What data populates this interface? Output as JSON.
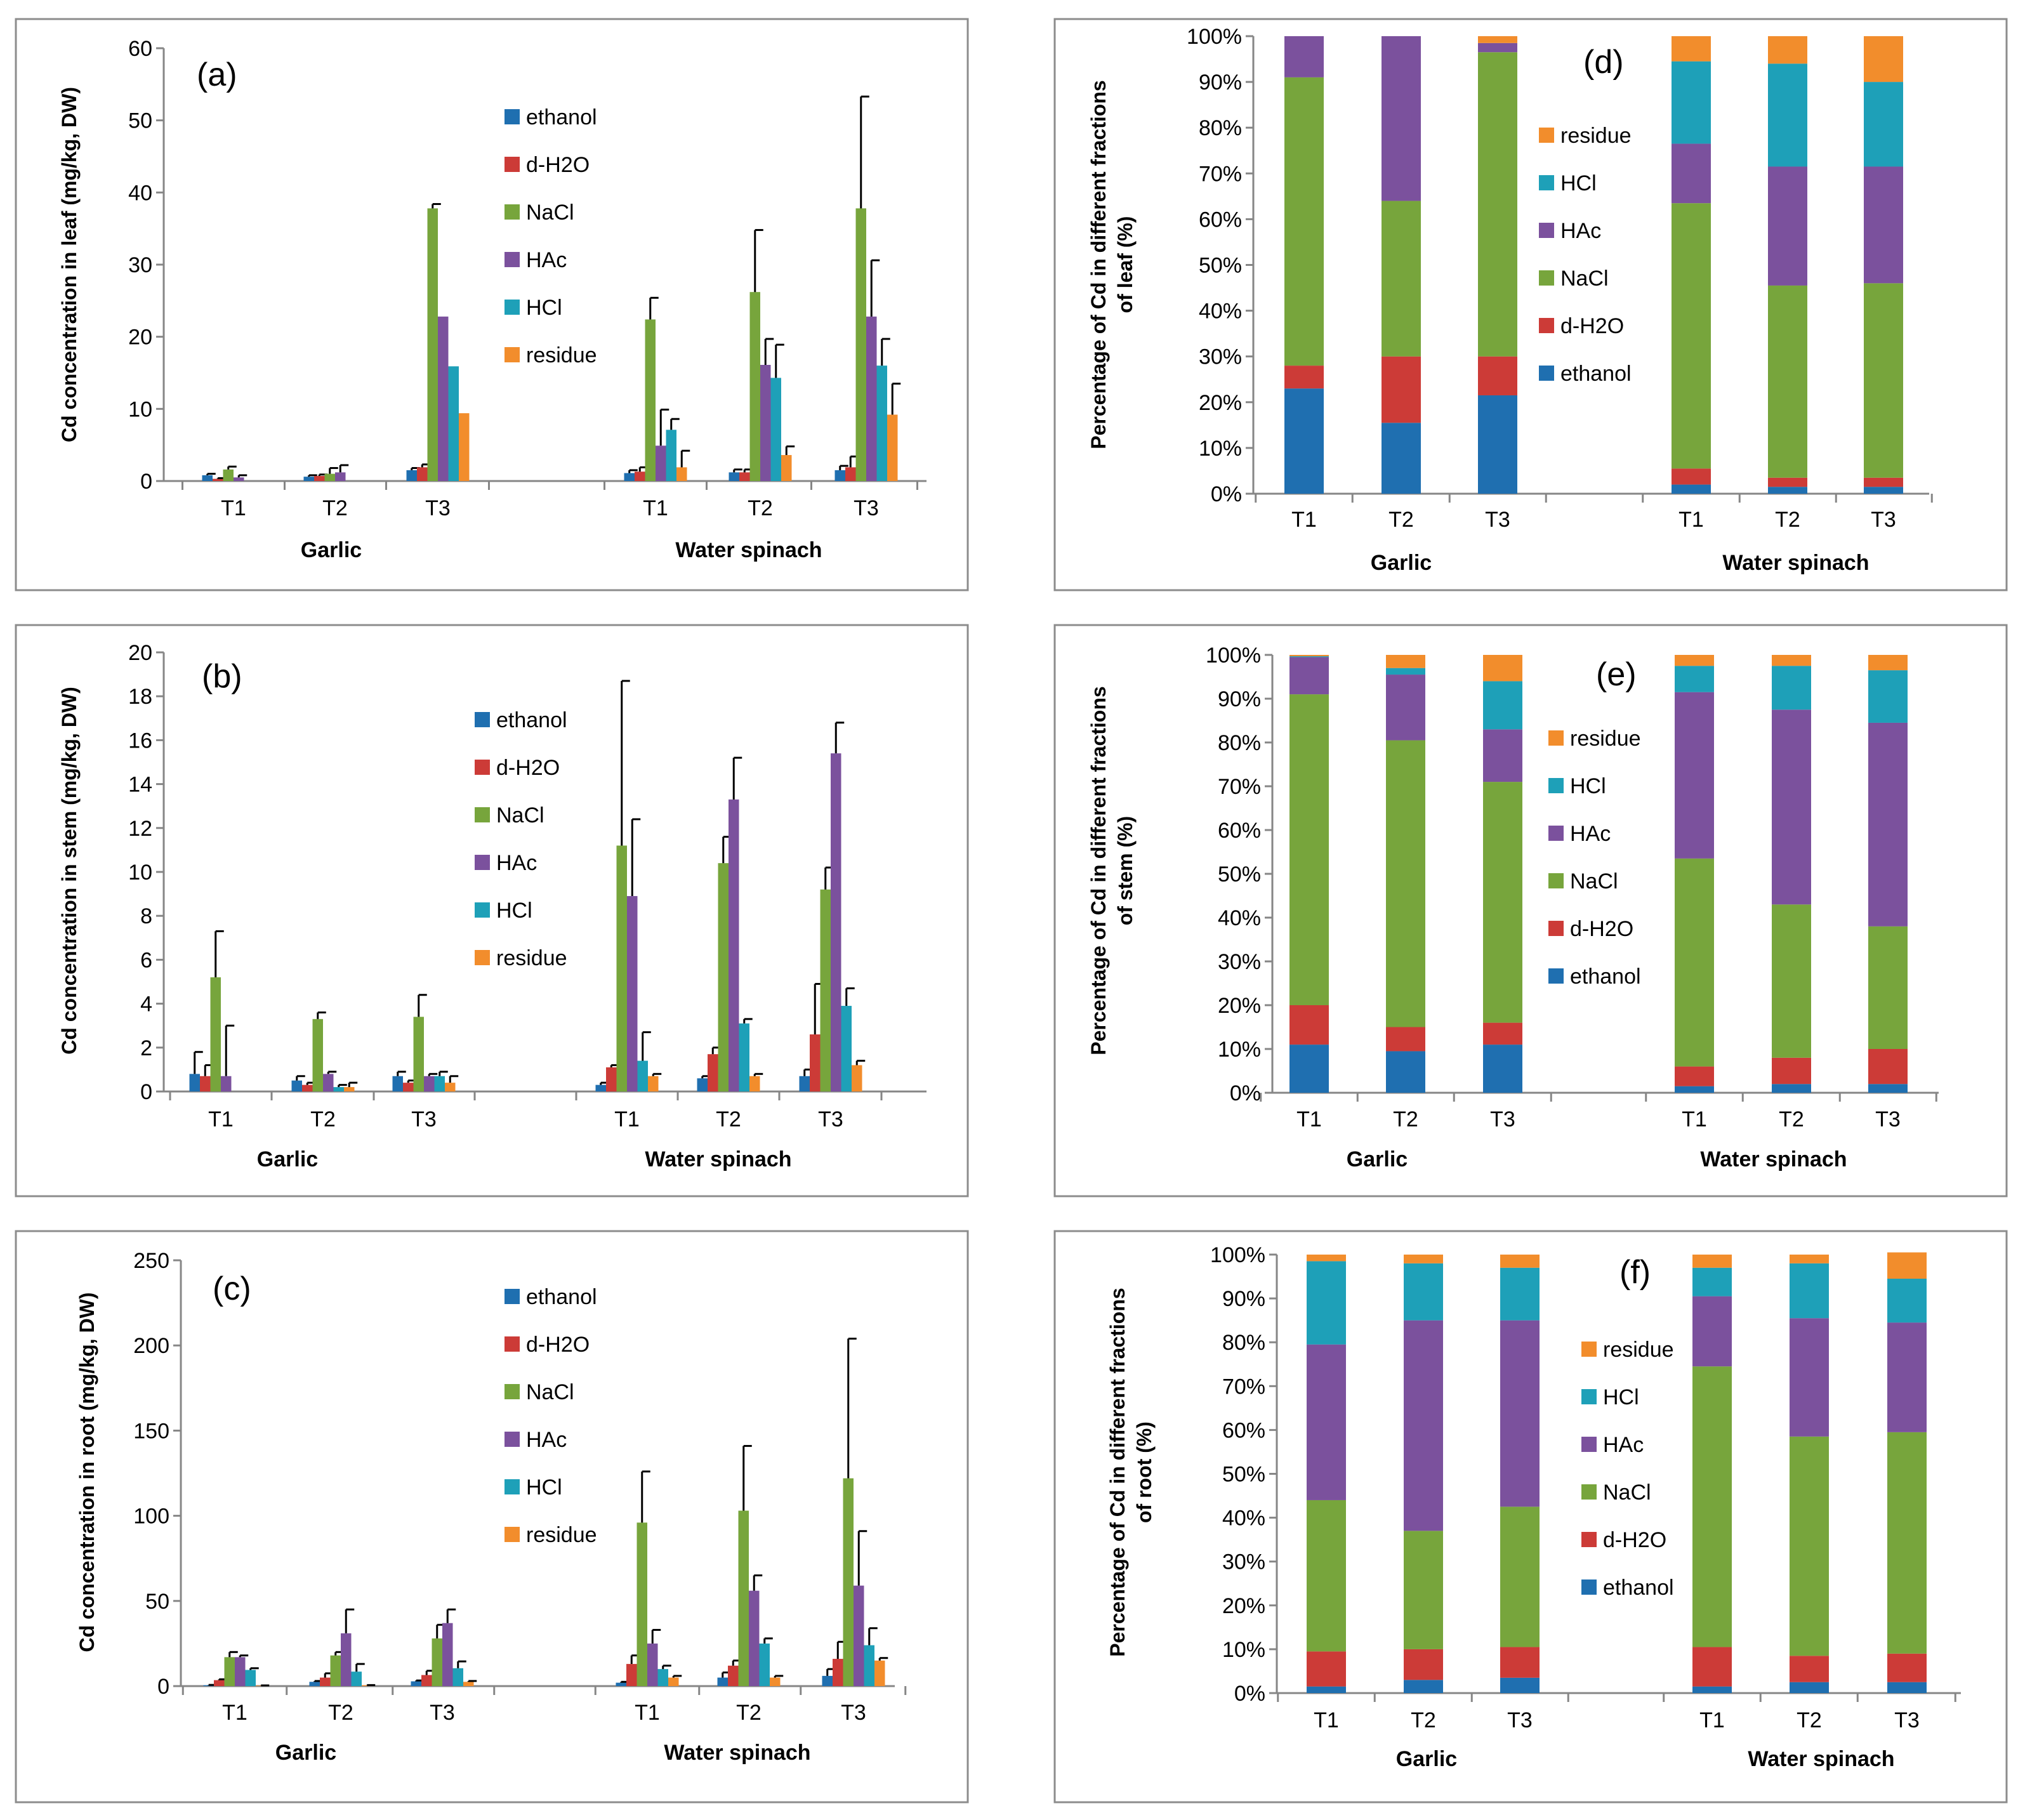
{
  "colors": {
    "ethanol": "#1f6fb0",
    "d-H2O": "#cc3b37",
    "NaCl": "#77a53c",
    "HAc": "#7b519d",
    "HCl": "#1ea0b8",
    "residue": "#f28d2c"
  },
  "chart_data": [
    {
      "id": "a",
      "type": "bar",
      "letter": "(a)",
      "ylabel": "Cd concentration in leaf (mg/kg, DW)",
      "ylim": [
        0,
        60
      ],
      "yticks": [
        0,
        10,
        20,
        30,
        40,
        50,
        60
      ],
      "groups": [
        "Garlic",
        "Water spinach"
      ],
      "categories": [
        "T1",
        "T2",
        "T3"
      ],
      "legend": [
        "ethanol",
        "d-H2O",
        "NaCl",
        "HAc",
        "HCl",
        "residue"
      ],
      "series": [
        {
          "name": "ethanol",
          "values": [
            [
              0.8,
              0.6,
              1.5
            ],
            [
              1.1,
              1.2,
              1.5
            ]
          ],
          "errors": [
            [
              0.2,
              0.2,
              0.3
            ],
            [
              0.4,
              0.4,
              0.6
            ]
          ]
        },
        {
          "name": "d-H2O",
          "values": [
            [
              0.3,
              0.7,
              1.9
            ],
            [
              1.3,
              1.2,
              1.9
            ]
          ],
          "errors": [
            [
              0.1,
              0.2,
              0.4
            ],
            [
              0.6,
              0.4,
              1.5
            ]
          ]
        },
        {
          "name": "NaCl",
          "values": [
            [
              1.6,
              1.0,
              37.8
            ],
            [
              22.4,
              26.2,
              37.8
            ]
          ],
          "errors": [
            [
              0.4,
              0.8,
              0.6
            ],
            [
              3.0,
              8.6,
              15.5
            ]
          ]
        },
        {
          "name": "HAc",
          "values": [
            [
              0.5,
              1.2,
              22.8
            ],
            [
              4.9,
              16.1,
              22.8
            ]
          ],
          "errors": [
            [
              0.3,
              1.0,
              0.0
            ],
            [
              5.0,
              3.6,
              7.8
            ]
          ]
        },
        {
          "name": "HCl",
          "values": [
            [
              0.0,
              0.0,
              15.9
            ],
            [
              7.1,
              14.3,
              16.0
            ]
          ],
          "errors": [
            [
              0.0,
              0.0,
              0.0
            ],
            [
              1.5,
              4.6,
              3.7
            ]
          ]
        },
        {
          "name": "residue",
          "values": [
            [
              0.0,
              0.0,
              9.4
            ],
            [
              1.9,
              3.6,
              9.2
            ]
          ],
          "errors": [
            [
              0.0,
              0.0,
              0.0
            ],
            [
              2.3,
              1.2,
              4.3
            ]
          ]
        }
      ]
    },
    {
      "id": "b",
      "type": "bar",
      "letter": "(b)",
      "ylabel": "Cd concentration in stem (mg/kg, DW)",
      "ylim": [
        0,
        20
      ],
      "yticks": [
        0,
        2,
        4,
        6,
        8,
        10,
        12,
        14,
        16,
        18,
        20
      ],
      "groups": [
        "Garlic",
        "Water spinach"
      ],
      "categories": [
        "T1",
        "T2",
        "T3"
      ],
      "legend": [
        "ethanol",
        "d-H2O",
        "NaCl",
        "HAc",
        "HCl",
        "residue"
      ],
      "series": [
        {
          "name": "ethanol",
          "values": [
            [
              0.8,
              0.5,
              0.7
            ],
            [
              0.3,
              0.6,
              0.7
            ]
          ],
          "errors": [
            [
              1.0,
              0.2,
              0.2
            ],
            [
              0.1,
              0.1,
              0.3
            ]
          ]
        },
        {
          "name": "d-H2O",
          "values": [
            [
              0.7,
              0.3,
              0.4
            ],
            [
              1.1,
              1.7,
              2.6
            ]
          ],
          "errors": [
            [
              0.5,
              0.1,
              0.1
            ],
            [
              0.1,
              0.3,
              2.3
            ]
          ]
        },
        {
          "name": "NaCl",
          "values": [
            [
              5.2,
              3.3,
              3.4
            ],
            [
              11.2,
              10.4,
              9.2
            ]
          ],
          "errors": [
            [
              2.1,
              0.3,
              1.0
            ],
            [
              7.5,
              1.2,
              1.0
            ]
          ]
        },
        {
          "name": "HAc",
          "values": [
            [
              0.7,
              0.8,
              0.7
            ],
            [
              8.9,
              13.3,
              15.4
            ]
          ],
          "errors": [
            [
              2.3,
              0.1,
              0.1
            ],
            [
              3.5,
              1.9,
              1.4
            ]
          ]
        },
        {
          "name": "HCl",
          "values": [
            [
              0.0,
              0.2,
              0.7
            ],
            [
              1.4,
              3.1,
              3.9
            ]
          ],
          "errors": [
            [
              0.0,
              0.1,
              0.2
            ],
            [
              1.3,
              0.2,
              0.8
            ]
          ]
        },
        {
          "name": "residue",
          "values": [
            [
              0.0,
              0.2,
              0.4
            ],
            [
              0.7,
              0.7,
              1.2
            ]
          ],
          "errors": [
            [
              0.0,
              0.2,
              0.3
            ],
            [
              0.1,
              0.1,
              0.2
            ]
          ]
        }
      ]
    },
    {
      "id": "c",
      "type": "bar",
      "letter": "(c)",
      "ylabel": "Cd concentration in root (mg/kg, DW)",
      "ylim": [
        0,
        250
      ],
      "yticks": [
        0,
        50,
        100,
        150,
        200,
        250
      ],
      "groups": [
        "Garlic",
        "Water spinach"
      ],
      "categories": [
        "T1",
        "T2",
        "T3"
      ],
      "legend": [
        "ethanol",
        "d-H2O",
        "NaCl",
        "HAc",
        "HCl",
        "residue"
      ],
      "series": [
        {
          "name": "ethanol",
          "values": [
            [
              0.5,
              2.5,
              2.8
            ],
            [
              2.0,
              5.0,
              6.0
            ]
          ],
          "errors": [
            [
              0.2,
              0.5,
              0.5
            ],
            [
              0.5,
              3.0,
              4.0
            ]
          ]
        },
        {
          "name": "d-H2O",
          "values": [
            [
              3.5,
              5.0,
              6.5
            ],
            [
              13.0,
              12.0,
              16.0
            ]
          ],
          "errors": [
            [
              0.5,
              2.5,
              2.5
            ],
            [
              5.0,
              3.0,
              10.0
            ]
          ]
        },
        {
          "name": "NaCl",
          "values": [
            [
              17.0,
              18.0,
              28.0
            ],
            [
              96.0,
              103.0,
              122.0
            ]
          ],
          "errors": [
            [
              3.0,
              2.0,
              8.0
            ],
            [
              30.0,
              38.0,
              82.0
            ]
          ]
        },
        {
          "name": "HAc",
          "values": [
            [
              17.0,
              31.0,
              37.0
            ],
            [
              25.0,
              56.0,
              59.0
            ]
          ],
          "errors": [
            [
              1.0,
              14.0,
              8.0
            ],
            [
              8.0,
              9.0,
              32.0
            ]
          ]
        },
        {
          "name": "HCl",
          "values": [
            [
              9.5,
              8.5,
              10.5
            ],
            [
              10.0,
              25.0,
              24.0
            ]
          ],
          "errors": [
            [
              1.0,
              4.5,
              4.0
            ],
            [
              2.0,
              3.0,
              10.0
            ]
          ]
        },
        {
          "name": "residue",
          "values": [
            [
              0.3,
              0.5,
              2.5
            ],
            [
              5.0,
              5.0,
              15.0
            ]
          ],
          "errors": [
            [
              0.1,
              0.1,
              0.5
            ],
            [
              1.0,
              1.0,
              1.5
            ]
          ]
        }
      ]
    },
    {
      "id": "d",
      "type": "bar",
      "stacked": true,
      "letter": "(d)",
      "ylabel": [
        "Percentage of Cd in different fractions",
        "of leaf (%)"
      ],
      "ylim": [
        0,
        100
      ],
      "yticks": [
        "0%",
        "10%",
        "20%",
        "30%",
        "40%",
        "50%",
        "60%",
        "70%",
        "80%",
        "90%",
        "100%"
      ],
      "groups": [
        "Garlic",
        "Water spinach"
      ],
      "categories": [
        "T1",
        "T2",
        "T3"
      ],
      "legend": [
        "residue",
        "HCl",
        "HAc",
        "NaCl",
        "d-H2O",
        "ethanol"
      ],
      "series": [
        {
          "name": "ethanol",
          "values": [
            [
              23,
              15.5,
              21.5
            ],
            [
              2,
              1.5,
              1.5
            ]
          ]
        },
        {
          "name": "d-H2O",
          "values": [
            [
              5,
              14.5,
              8.5
            ],
            [
              3.5,
              2,
              2
            ]
          ]
        },
        {
          "name": "NaCl",
          "values": [
            [
              63,
              34,
              66.5
            ],
            [
              58,
              42,
              42.5
            ]
          ]
        },
        {
          "name": "HAc",
          "values": [
            [
              9,
              36,
              2
            ],
            [
              13,
              26,
              25.5
            ]
          ]
        },
        {
          "name": "HCl",
          "values": [
            [
              0,
              0,
              0
            ],
            [
              18,
              22.5,
              18.5
            ]
          ]
        },
        {
          "name": "residue",
          "values": [
            [
              0,
              0,
              1.5
            ],
            [
              5.5,
              6,
              10
            ]
          ]
        }
      ]
    },
    {
      "id": "e",
      "type": "bar",
      "stacked": true,
      "letter": "(e)",
      "ylabel": [
        "Percentage of Cd in different fractions",
        "of stem (%)"
      ],
      "ylim": [
        0,
        100
      ],
      "yticks": [
        "0%",
        "10%",
        "20%",
        "30%",
        "40%",
        "50%",
        "60%",
        "70%",
        "80%",
        "90%",
        "100%"
      ],
      "groups": [
        "Garlic",
        "Water spinach"
      ],
      "categories": [
        "T1",
        "T2",
        "T3"
      ],
      "legend": [
        "residue",
        "HCl",
        "HAc",
        "NaCl",
        "d-H2O",
        "ethanol"
      ],
      "series": [
        {
          "name": "ethanol",
          "values": [
            [
              11,
              9.5,
              11
            ],
            [
              1.5,
              2,
              2
            ]
          ]
        },
        {
          "name": "d-H2O",
          "values": [
            [
              9,
              5.5,
              5
            ],
            [
              4.5,
              6,
              8
            ]
          ]
        },
        {
          "name": "NaCl",
          "values": [
            [
              71,
              65.5,
              55
            ],
            [
              47.5,
              35,
              28
            ]
          ]
        },
        {
          "name": "HAc",
          "values": [
            [
              8.5,
              15,
              12
            ],
            [
              38,
              44.5,
              46.5
            ]
          ]
        },
        {
          "name": "HCl",
          "values": [
            [
              0.2,
              1.5,
              11
            ],
            [
              6,
              10,
              12
            ]
          ]
        },
        {
          "name": "residue",
          "values": [
            [
              0.3,
              3,
              6
            ],
            [
              2.5,
              2.5,
              3.5
            ]
          ]
        }
      ]
    },
    {
      "id": "f",
      "type": "bar",
      "stacked": true,
      "letter": "(f)",
      "ylabel": [
        "Percentage of Cd in different fractions",
        "of root (%)"
      ],
      "ylim": [
        0,
        100
      ],
      "yticks": [
        "0%",
        "10%",
        "20%",
        "30%",
        "40%",
        "50%",
        "60%",
        "70%",
        "80%",
        "90%",
        "100%"
      ],
      "groups": [
        "Garlic",
        "Water spinach"
      ],
      "categories": [
        "T1",
        "T2",
        "T3"
      ],
      "legend": [
        "residue",
        "HCl",
        "HAc",
        "NaCl",
        "d-H2O",
        "ethanol"
      ],
      "series": [
        {
          "name": "ethanol",
          "values": [
            [
              1.5,
              3,
              3.5
            ],
            [
              1.5,
              2.5,
              2.5
            ]
          ]
        },
        {
          "name": "d-H2O",
          "values": [
            [
              8,
              7,
              7
            ],
            [
              9,
              6,
              6.5
            ]
          ]
        },
        {
          "name": "NaCl",
          "values": [
            [
              34.5,
              27,
              32
            ],
            [
              64,
              50,
              50.5
            ]
          ]
        },
        {
          "name": "HAc",
          "values": [
            [
              35.5,
              48,
              42.5
            ],
            [
              16,
              27,
              25
            ]
          ]
        },
        {
          "name": "HCl",
          "values": [
            [
              19,
              13,
              12
            ],
            [
              6.5,
              12.5,
              10
            ]
          ]
        },
        {
          "name": "residue",
          "values": [
            [
              1.5,
              2,
              3
            ],
            [
              3,
              2,
              6
            ]
          ]
        }
      ]
    }
  ]
}
